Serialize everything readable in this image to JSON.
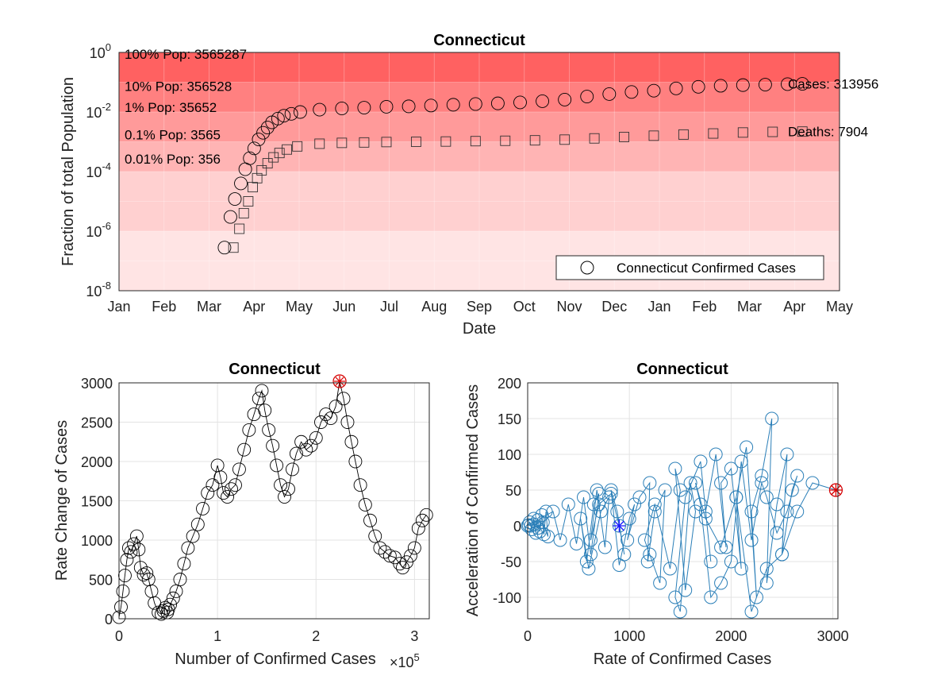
{
  "chart_data": [
    {
      "type": "scatter",
      "title": "Connecticut",
      "xlabel": "Date",
      "ylabel": "Fraction of total Population",
      "yscale": "log",
      "ylim": [
        1e-08,
        1
      ],
      "y_ticks": [
        {
          "base": "10",
          "exp": "0"
        },
        {
          "base": "10",
          "exp": "-2"
        },
        {
          "base": "10",
          "exp": "-4"
        },
        {
          "base": "10",
          "exp": "-6"
        },
        {
          "base": "10",
          "exp": "-8"
        }
      ],
      "x_ticks": [
        "Jan",
        "Feb",
        "Mar",
        "Apr",
        "May",
        "Jun",
        "Jul",
        "Aug",
        "Sep",
        "Oct",
        "Nov",
        "Dec",
        "Jan",
        "Feb",
        "Mar",
        "Apr",
        "May"
      ],
      "band_colors": [
        "#ff6161",
        "#ff8080",
        "#ff9a9a",
        "#ffb4b4",
        "#ffd0d0",
        "#ffe4e4"
      ],
      "population_labels": [
        {
          "text": "100% Pop: 3565287",
          "value": 1
        },
        {
          "text": "10% Pop: 356528",
          "value": 0.1
        },
        {
          "text": "1% Pop: 35652",
          "value": 0.01
        },
        {
          "text": "0.1% Pop: 3565",
          "value": 0.001
        },
        {
          "text": "0.01% Pop: 356",
          "value": 0.0001
        }
      ],
      "end_labels": [
        {
          "text": "Cases: 313956",
          "value": 0.088
        },
        {
          "text": "Deaths: 7904",
          "value": 0.0022
        }
      ],
      "legend": {
        "label": "Connecticut Confirmed Cases",
        "placement": "bottom-right"
      },
      "series": [
        {
          "name": "Connecticut Confirmed Cases",
          "marker": "circle",
          "x_days": [
            71,
            75,
            78,
            82,
            85,
            88,
            91,
            94,
            97,
            100,
            103,
            107,
            111,
            116,
            122,
            135,
            150,
            165,
            180,
            195,
            210,
            225,
            240,
            255,
            270,
            285,
            300,
            315,
            330,
            345,
            360,
            375,
            390,
            405,
            420,
            435,
            450,
            460
          ],
          "y": [
            2.8e-07,
            3e-06,
            1.2e-05,
            4e-05,
            0.00012,
            0.00028,
            0.0006,
            0.0012,
            0.002,
            0.003,
            0.0045,
            0.006,
            0.0075,
            0.0087,
            0.01,
            0.012,
            0.0132,
            0.014,
            0.015,
            0.0155,
            0.0165,
            0.0175,
            0.0185,
            0.0195,
            0.021,
            0.023,
            0.026,
            0.033,
            0.04,
            0.047,
            0.052,
            0.062,
            0.07,
            0.076,
            0.08,
            0.083,
            0.086,
            0.088
          ]
        },
        {
          "name": "",
          "marker": "square",
          "x_days": [
            77,
            81,
            84,
            87,
            90,
            93,
            96,
            100,
            104,
            108,
            113,
            120,
            135,
            150,
            165,
            180,
            200,
            220,
            240,
            260,
            280,
            300,
            320,
            340,
            360,
            380,
            400,
            420,
            440,
            460
          ],
          "y": [
            2.8e-07,
            1.2e-06,
            4e-06,
            1e-05,
            3e-05,
            6e-05,
            0.00011,
            0.00019,
            0.0003,
            0.00042,
            0.00055,
            0.0007,
            0.00086,
            0.00092,
            0.00095,
            0.00098,
            0.001,
            0.00102,
            0.00105,
            0.00108,
            0.00112,
            0.00118,
            0.0013,
            0.00145,
            0.0016,
            0.00175,
            0.0019,
            0.00205,
            0.00215,
            0.0022
          ]
        }
      ]
    },
    {
      "type": "line",
      "title": "Connecticut",
      "xlabel": "Number of Confirmed Cases",
      "x_exponent": {
        "base": "×10",
        "exp": "5"
      },
      "ylabel": "Rate Change of Cases",
      "xlim": [
        0,
        3.15
      ],
      "ylim": [
        0,
        3000
      ],
      "x_ticks": [
        "0",
        "1",
        "2",
        "3"
      ],
      "y_ticks": [
        "0",
        "500",
        "1000",
        "1500",
        "2000",
        "2500",
        "3000"
      ],
      "series": [
        {
          "name": "",
          "x": [
            0.0,
            0.02,
            0.04,
            0.06,
            0.08,
            0.1,
            0.12,
            0.15,
            0.18,
            0.2,
            0.22,
            0.25,
            0.28,
            0.3,
            0.33,
            0.36,
            0.4,
            0.43,
            0.45,
            0.47,
            0.49,
            0.5,
            0.52,
            0.55,
            0.58,
            0.62,
            0.66,
            0.7,
            0.75,
            0.8,
            0.85,
            0.9,
            0.95,
            1.0,
            1.03,
            1.06,
            1.1,
            1.14,
            1.18,
            1.22,
            1.27,
            1.32,
            1.37,
            1.42,
            1.45,
            1.48,
            1.52,
            1.56,
            1.6,
            1.64,
            1.68,
            1.72,
            1.76,
            1.8,
            1.85,
            1.9,
            1.95,
            2.0,
            2.05,
            2.1,
            2.15,
            2.2,
            2.24,
            2.28,
            2.32,
            2.36,
            2.4,
            2.45,
            2.5,
            2.55,
            2.6,
            2.65,
            2.7,
            2.75,
            2.8,
            2.85,
            2.88,
            2.92,
            2.96,
            3.0,
            3.04,
            3.08,
            3.12
          ],
          "y": [
            20,
            150,
            350,
            550,
            750,
            900,
            850,
            950,
            1050,
            880,
            650,
            560,
            580,
            500,
            350,
            200,
            80,
            60,
            100,
            140,
            80,
            120,
            180,
            260,
            350,
            500,
            700,
            900,
            1050,
            1200,
            1400,
            1600,
            1700,
            1950,
            1800,
            1600,
            1550,
            1650,
            1700,
            1900,
            2150,
            2400,
            2600,
            2800,
            2900,
            2650,
            2400,
            2200,
            1950,
            1700,
            1550,
            1650,
            1900,
            2100,
            2250,
            2150,
            2200,
            2300,
            2500,
            2600,
            2550,
            2700,
            3020,
            2800,
            2500,
            2250,
            2000,
            1700,
            1450,
            1250,
            1050,
            900,
            850,
            800,
            780,
            700,
            650,
            720,
            800,
            900,
            1150,
            1250,
            1320
          ]
        }
      ],
      "highlight": {
        "x": 2.24,
        "y": 3020
      }
    },
    {
      "type": "line",
      "title": "Connecticut",
      "xlabel": "Rate of Confirmed Cases",
      "ylabel": "Acceleration of Confirmed Cases",
      "xlim": [
        0,
        3050
      ],
      "ylim": [
        -130,
        200
      ],
      "x_ticks": [
        "0",
        "1000",
        "2000",
        "3000"
      ],
      "y_ticks": [
        "200",
        "150",
        "100",
        "50",
        "0",
        "-50",
        "-100"
      ],
      "series": [
        {
          "name": "",
          "x": [
            0,
            20,
            40,
            60,
            80,
            100,
            120,
            140,
            160,
            180,
            200,
            150,
            100,
            60,
            30,
            10,
            250,
            320,
            400,
            480,
            550,
            620,
            700,
            650,
            580,
            520,
            600,
            720,
            800,
            760,
            680,
            620,
            700,
            820,
            900,
            950,
            880,
            820,
            900,
            1000,
            1050,
            980,
            1100,
            1200,
            1180,
            1250,
            1350,
            1300,
            1200,
            1150,
            1250,
            1400,
            1500,
            1450,
            1550,
            1650,
            1600,
            1500,
            1450,
            1550,
            1700,
            1800,
            1750,
            1850,
            1950,
            1900,
            2000,
            2100,
            2050,
            2150,
            2250,
            2200,
            2300,
            2400,
            2350,
            2450,
            2550,
            2500,
            2600,
            2650,
            2550,
            2450,
            2350,
            2300,
            2200,
            2100,
            2000,
            1900,
            1800,
            1700,
            1650,
            1750,
            1900,
            2050,
            2200,
            2350,
            2500,
            2650,
            2800,
            3030
          ],
          "y": [
            0,
            5,
            -5,
            10,
            -10,
            8,
            -8,
            15,
            -12,
            20,
            -15,
            5,
            -3,
            2,
            0,
            1,
            20,
            -20,
            30,
            -25,
            40,
            -40,
            45,
            30,
            -50,
            10,
            -60,
            20,
            40,
            -30,
            50,
            -20,
            30,
            45,
            0,
            -40,
            20,
            50,
            -55,
            10,
            30,
            -20,
            40,
            60,
            -50,
            20,
            50,
            -80,
            -40,
            -20,
            30,
            -60,
            50,
            80,
            -90,
            20,
            60,
            -120,
            -100,
            40,
            90,
            -50,
            20,
            100,
            -30,
            60,
            80,
            -60,
            40,
            110,
            -100,
            20,
            70,
            150,
            -80,
            30,
            100,
            -40,
            50,
            70,
            20,
            -10,
            40,
            60,
            -20,
            90,
            -50,
            -80,
            -100,
            30,
            60,
            10,
            -30,
            40,
            -120,
            -60,
            -40,
            20,
            60,
            50
          ],
          "color": "#2b7fb8"
        }
      ],
      "highlight_end": {
        "x": 3030,
        "y": 50
      },
      "highlight_mid": {
        "x": 900,
        "y": 0
      }
    }
  ]
}
